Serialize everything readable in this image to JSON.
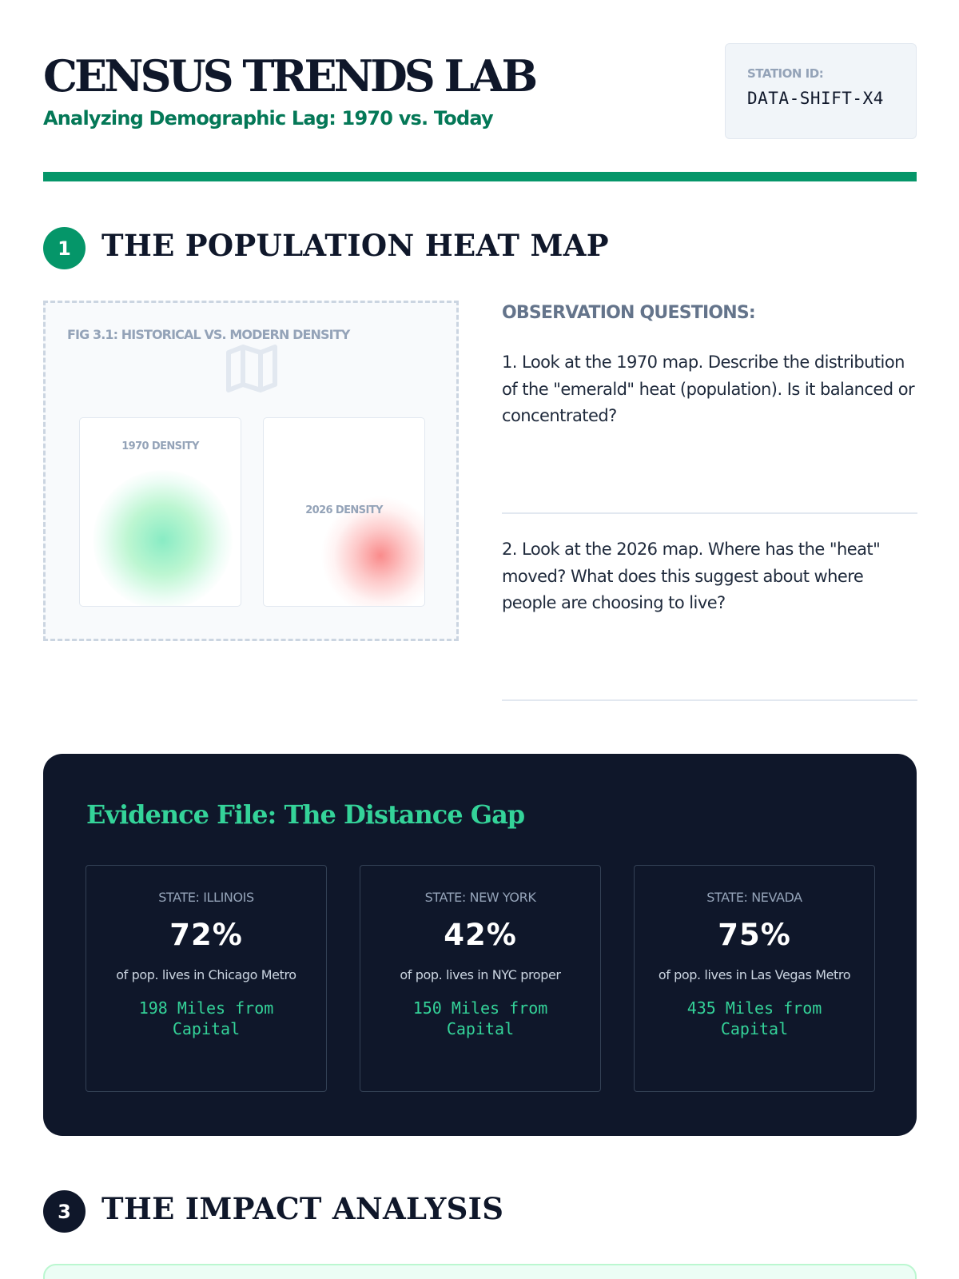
{
  "header": {
    "title": "CENSUS TRENDS LAB",
    "subtitle": "Analyzing Demographic Lag: 1970 vs. Today",
    "station_label": "STATION ID:",
    "station_value": "DATA-SHIFT-X4"
  },
  "colors": {
    "accent": "#059669",
    "navy": "#0f172a",
    "heat_1970": "#6ee7b7",
    "heat_2026": "#f87171"
  },
  "section1": {
    "number": "1",
    "title": "THE POPULATION HEAT MAP",
    "figure": {
      "caption": "FIG 3.1: HISTORICAL VS. MODERN DENSITY",
      "icon": "map-icon",
      "panel_1970_label": "1970 DENSITY",
      "panel_2026_label": "2026 DENSITY"
    },
    "observation": {
      "heading": "OBSERVATION QUESTIONS:",
      "q1": "1. Look at the 1970 map. Describe the distribution of the \"emerald\" heat (population). Is it balanced or concentrated?",
      "q2": "2. Look at the 2026 map. Where has the \"heat\" moved? What does this suggest about where people are choosing to live?"
    }
  },
  "evidence": {
    "title": "Evidence File: The Distance Gap",
    "cards": [
      {
        "state": "STATE: ILLINOIS",
        "percent": "72%",
        "description": "of pop. lives in Chicago Metro",
        "distance": "198 Miles from Capital"
      },
      {
        "state": "STATE: NEW YORK",
        "percent": "42%",
        "description": "of pop. lives in NYC proper",
        "distance": "150 Miles from Capital"
      },
      {
        "state": "STATE: NEVADA",
        "percent": "75%",
        "description": "of pop. lives in Las Vegas Metro",
        "distance": "435 Miles from Capital"
      }
    ]
  },
  "section3": {
    "number": "3",
    "title": "THE IMPACT ANALYSIS"
  }
}
